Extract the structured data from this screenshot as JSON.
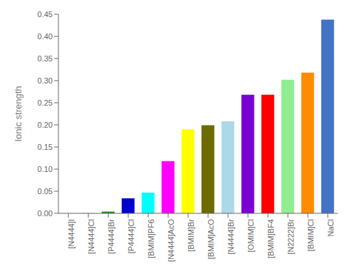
{
  "chart_data": {
    "type": "bar",
    "categories": [
      "[N4444]I",
      "[N4444]Cl",
      "[P4444]Br",
      "[P4444]Cl",
      "[BMIM]PF6",
      "[N4444]AcO",
      "[BMIM]Br",
      "[BMIM]AcO",
      "[N4444]Br",
      "[OMIM]Cl",
      "[BMIM]BF4",
      "[N2222]Br",
      "[BMIM]Cl",
      "NaCl"
    ],
    "values": [
      0.0005,
      0.001,
      0.004,
      0.034,
      0.047,
      0.118,
      0.19,
      0.199,
      0.208,
      0.268,
      0.268,
      0.302,
      0.318,
      0.438
    ],
    "colors": [
      "#D8D8D8",
      "#C8C8C8",
      "#228B22",
      "#0000CD",
      "#00FFFF",
      "#FF00FF",
      "#FFFF00",
      "#6B6B00",
      "#ADD8E6",
      "#7B00D4",
      "#FF0000",
      "#90EE90",
      "#FF8C00",
      "#4472C4"
    ],
    "ylabel": "Ionic strength",
    "ylim": [
      0,
      0.45
    ],
    "yticks": [
      {
        "value": 0,
        "label": "0.00"
      },
      0.05,
      {
        "value": 0.1,
        "label": "0.10"
      },
      0.15,
      {
        "value": 0.2,
        "label": "0.20"
      },
      0.25,
      {
        "value": 0.3,
        "label": "0.30"
      },
      0.35,
      {
        "value": 0.4,
        "label": "0.40"
      },
      0.45
    ],
    "grid": false
  }
}
